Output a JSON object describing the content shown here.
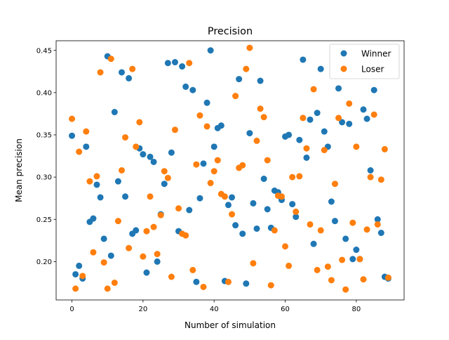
{
  "chart_data": {
    "type": "scatter",
    "title": "Precision",
    "xlabel": "Number of simulation",
    "ylabel": "Mean precision",
    "xlim": [
      -4.45,
      93.45
    ],
    "ylim": [
      0.1546,
      0.4614
    ],
    "xticks": [
      0,
      20,
      40,
      60,
      80
    ],
    "yticks": [
      0.2,
      0.25,
      0.3,
      0.35,
      0.4,
      0.45
    ],
    "ytick_labels": [
      "0.20",
      "0.25",
      "0.30",
      "0.35",
      "0.40",
      "0.45"
    ],
    "grid": false,
    "legend_position": "top-right",
    "series": [
      {
        "name": "Winner",
        "color": "#1f77b4",
        "x": [
          0,
          1,
          2,
          3,
          4,
          5,
          6,
          7,
          8,
          9,
          10,
          11,
          12,
          13,
          14,
          15,
          16,
          17,
          18,
          19,
          20,
          21,
          22,
          23,
          24,
          25,
          26,
          27,
          28,
          29,
          30,
          31,
          32,
          33,
          34,
          35,
          36,
          37,
          38,
          39,
          40,
          41,
          42,
          43,
          44,
          45,
          46,
          47,
          48,
          49,
          50,
          51,
          52,
          53,
          54,
          55,
          56,
          57,
          58,
          59,
          60,
          61,
          62,
          63,
          64,
          65,
          66,
          67,
          68,
          69,
          70,
          71,
          72,
          73,
          74,
          75,
          76,
          77,
          78,
          79,
          80,
          81,
          82,
          83,
          84,
          85,
          86,
          87,
          88,
          89
        ],
        "y": [
          0.349,
          0.185,
          0.195,
          0.18,
          0.336,
          0.247,
          0.251,
          0.291,
          0.276,
          0.227,
          0.443,
          0.207,
          0.377,
          0.295,
          0.424,
          0.277,
          0.417,
          0.233,
          0.237,
          0.334,
          0.327,
          0.187,
          0.324,
          0.318,
          0.2,
          0.256,
          0.292,
          0.435,
          0.329,
          0.436,
          0.236,
          0.431,
          0.407,
          0.261,
          0.403,
          0.176,
          0.275,
          0.316,
          0.388,
          0.45,
          0.336,
          0.358,
          0.361,
          0.177,
          0.267,
          0.276,
          0.243,
          0.416,
          0.233,
          0.174,
          0.352,
          0.269,
          0.239,
          0.414,
          0.298,
          0.262,
          0.24,
          0.284,
          0.282,
          0.273,
          0.348,
          0.35,
          0.268,
          0.253,
          0.344,
          0.439,
          0.323,
          0.368,
          0.221,
          0.376,
          0.428,
          0.354,
          0.336,
          0.271,
          0.248,
          0.405,
          0.365,
          0.227,
          0.363,
          0.203,
          0.214,
          0.203,
          0.38,
          0.369,
          0.308,
          0.403,
          0.25,
          0.234,
          0.182,
          0.18
        ]
      },
      {
        "name": "Loser",
        "color": "#ff7f0e",
        "x": [
          0,
          1,
          2,
          3,
          4,
          5,
          6,
          7,
          8,
          9,
          10,
          11,
          12,
          13,
          14,
          15,
          16,
          17,
          18,
          19,
          20,
          21,
          22,
          23,
          24,
          25,
          26,
          27,
          28,
          29,
          30,
          31,
          32,
          33,
          34,
          35,
          36,
          37,
          38,
          39,
          40,
          41,
          42,
          43,
          44,
          45,
          46,
          47,
          48,
          49,
          50,
          51,
          52,
          53,
          54,
          55,
          56,
          57,
          58,
          59,
          60,
          61,
          62,
          63,
          64,
          65,
          66,
          67,
          68,
          69,
          70,
          71,
          72,
          73,
          74,
          75,
          76,
          77,
          78,
          79,
          80,
          81,
          82,
          83,
          84,
          85,
          86,
          87,
          88,
          89
        ],
        "y": [
          0.369,
          0.168,
          0.33,
          0.183,
          0.354,
          0.295,
          0.211,
          0.301,
          0.424,
          0.199,
          0.168,
          0.44,
          0.175,
          0.248,
          0.308,
          0.347,
          0.216,
          0.428,
          0.336,
          0.365,
          0.206,
          0.236,
          0.277,
          0.241,
          0.209,
          0.255,
          0.307,
          0.299,
          0.182,
          0.356,
          0.263,
          0.233,
          0.231,
          0.435,
          0.19,
          0.315,
          0.373,
          0.17,
          0.36,
          0.293,
          0.307,
          0.32,
          0.28,
          0.277,
          0.176,
          0.256,
          0.396,
          0.311,
          0.314,
          0.428,
          0.453,
          0.198,
          0.343,
          0.381,
          0.371,
          0.32,
          0.172,
          0.237,
          0.278,
          0.277,
          0.218,
          0.195,
          0.3,
          0.259,
          0.301,
          0.37,
          0.334,
          0.244,
          0.404,
          0.19,
          0.237,
          0.332,
          0.194,
          0.178,
          0.292,
          0.37,
          0.202,
          0.167,
          0.387,
          0.246,
          0.336,
          0.203,
          0.179,
          0.238,
          0.3,
          0.374,
          0.244,
          0.297,
          0.333,
          0.181
        ]
      }
    ]
  }
}
